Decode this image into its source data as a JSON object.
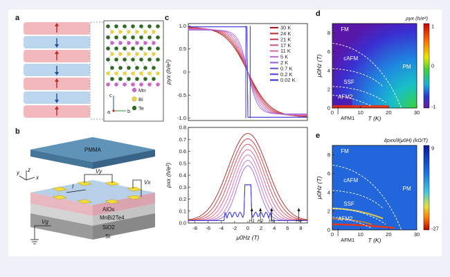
{
  "panels": {
    "a": {
      "label": "a",
      "elements": [
        "Mn",
        "Bi",
        "Te"
      ],
      "axes": [
        "c",
        "a",
        "b"
      ]
    },
    "b": {
      "label": "b",
      "layers": [
        "PMMA",
        "AlOx",
        "MnBi2Te4",
        "SiO2",
        "Si"
      ],
      "probes": [
        "Vy",
        "Vx",
        "I",
        "Vg"
      ],
      "coord_axes": [
        "y",
        "z",
        "x"
      ]
    },
    "c": {
      "label": "c"
    },
    "d": {
      "label": "d"
    },
    "e": {
      "label": "e"
    }
  },
  "colors": {
    "mn": "#cc66cc",
    "bi": "#e8d44a",
    "te": "#2e6b22",
    "spin_red": "#f2b8bc",
    "spin_blue": "#bcd6ee"
  },
  "chart_data": [
    {
      "type": "line",
      "id": "c-top",
      "ylabel": "ρyx (h/e²)",
      "ylim": [
        -1.05,
        1.05
      ],
      "xlim": [
        -9,
        9
      ],
      "yticks": [
        "1.0",
        "0.5",
        "0",
        "-0.5",
        "-1.0"
      ],
      "temperatures": [
        "30 K",
        "24 K",
        "21 K",
        "17 K",
        "11 K",
        "5 K",
        "2 K",
        "0.7 K",
        "0.2 K",
        "0.02 K"
      ],
      "legend_colors": [
        "#a82020",
        "#c53434",
        "#d04a5a",
        "#d6608a",
        "#d870b0",
        "#c070d8",
        "#9a66e0",
        "#7a5ce4",
        "#5a4ae8",
        "#3a3ad8"
      ]
    },
    {
      "type": "line",
      "id": "c-bottom",
      "ylabel": "ρxx (h/e²)",
      "xlabel": "μ0Hz (T)",
      "ylim": [
        0,
        0.8
      ],
      "xlim": [
        -9,
        9
      ],
      "yticks": [
        "0.0",
        "0.1",
        "0.2",
        "0.3",
        "0.4",
        "0.5",
        "0.6",
        "0.7",
        "0.8"
      ],
      "xticks": [
        "-8",
        "-6",
        "-4",
        "-2",
        "0",
        "2",
        "4",
        "6",
        "8"
      ],
      "critical_fields": [
        {
          "name": "H1",
          "x": 0.6
        },
        {
          "name": "H2",
          "x": 1.9
        },
        {
          "name": "H3",
          "x": 3.6
        },
        {
          "name": "H4",
          "x": 7.7
        }
      ]
    },
    {
      "type": "heatmap",
      "id": "d",
      "xlabel": "T (K)",
      "ylabel": "μ0Hz (T)",
      "colorbar_label": "ρyx (h/e²)",
      "colorbar_ticks": [
        "1",
        "0",
        "-1"
      ],
      "xticks": [
        "0",
        "10",
        "20",
        "30"
      ],
      "yticks": [
        "0",
        "2",
        "4",
        "6",
        "8"
      ],
      "xlim": [
        0,
        30
      ],
      "ylim": [
        0,
        9
      ],
      "regions": [
        {
          "name": "FM",
          "t": 3,
          "h": 8.2
        },
        {
          "name": "cAFM",
          "t": 4,
          "h": 5.1
        },
        {
          "name": "SSF",
          "t": 4,
          "h": 2.6
        },
        {
          "name": "AFM2",
          "t": 2,
          "h": 1.0
        },
        {
          "name": "PM",
          "t": 25,
          "h": 4.2
        },
        {
          "name": "AFM1",
          "t": 3,
          "h": -1.1
        }
      ]
    },
    {
      "type": "heatmap",
      "id": "e",
      "xlabel": "T (K)",
      "ylabel": "μ0Hz (T)",
      "colorbar_label": "∂ρxx/∂(μ0H) (kΩ/T)",
      "colorbar_ticks": [
        "9",
        "-27"
      ],
      "xticks": [
        "0",
        "10",
        "20",
        "30"
      ],
      "yticks": [
        "0",
        "2",
        "4",
        "6",
        "8"
      ],
      "xlim": [
        0,
        30
      ],
      "ylim": [
        0,
        9
      ],
      "regions": [
        {
          "name": "FM",
          "t": 3,
          "h": 8.2
        },
        {
          "name": "cAFM",
          "t": 4,
          "h": 5.1
        },
        {
          "name": "SSF",
          "t": 4,
          "h": 2.6
        },
        {
          "name": "AFM2",
          "t": 2,
          "h": 1.0
        },
        {
          "name": "PM",
          "t": 25,
          "h": 4.2
        },
        {
          "name": "AFM1",
          "t": 3,
          "h": -1.1
        }
      ]
    }
  ]
}
